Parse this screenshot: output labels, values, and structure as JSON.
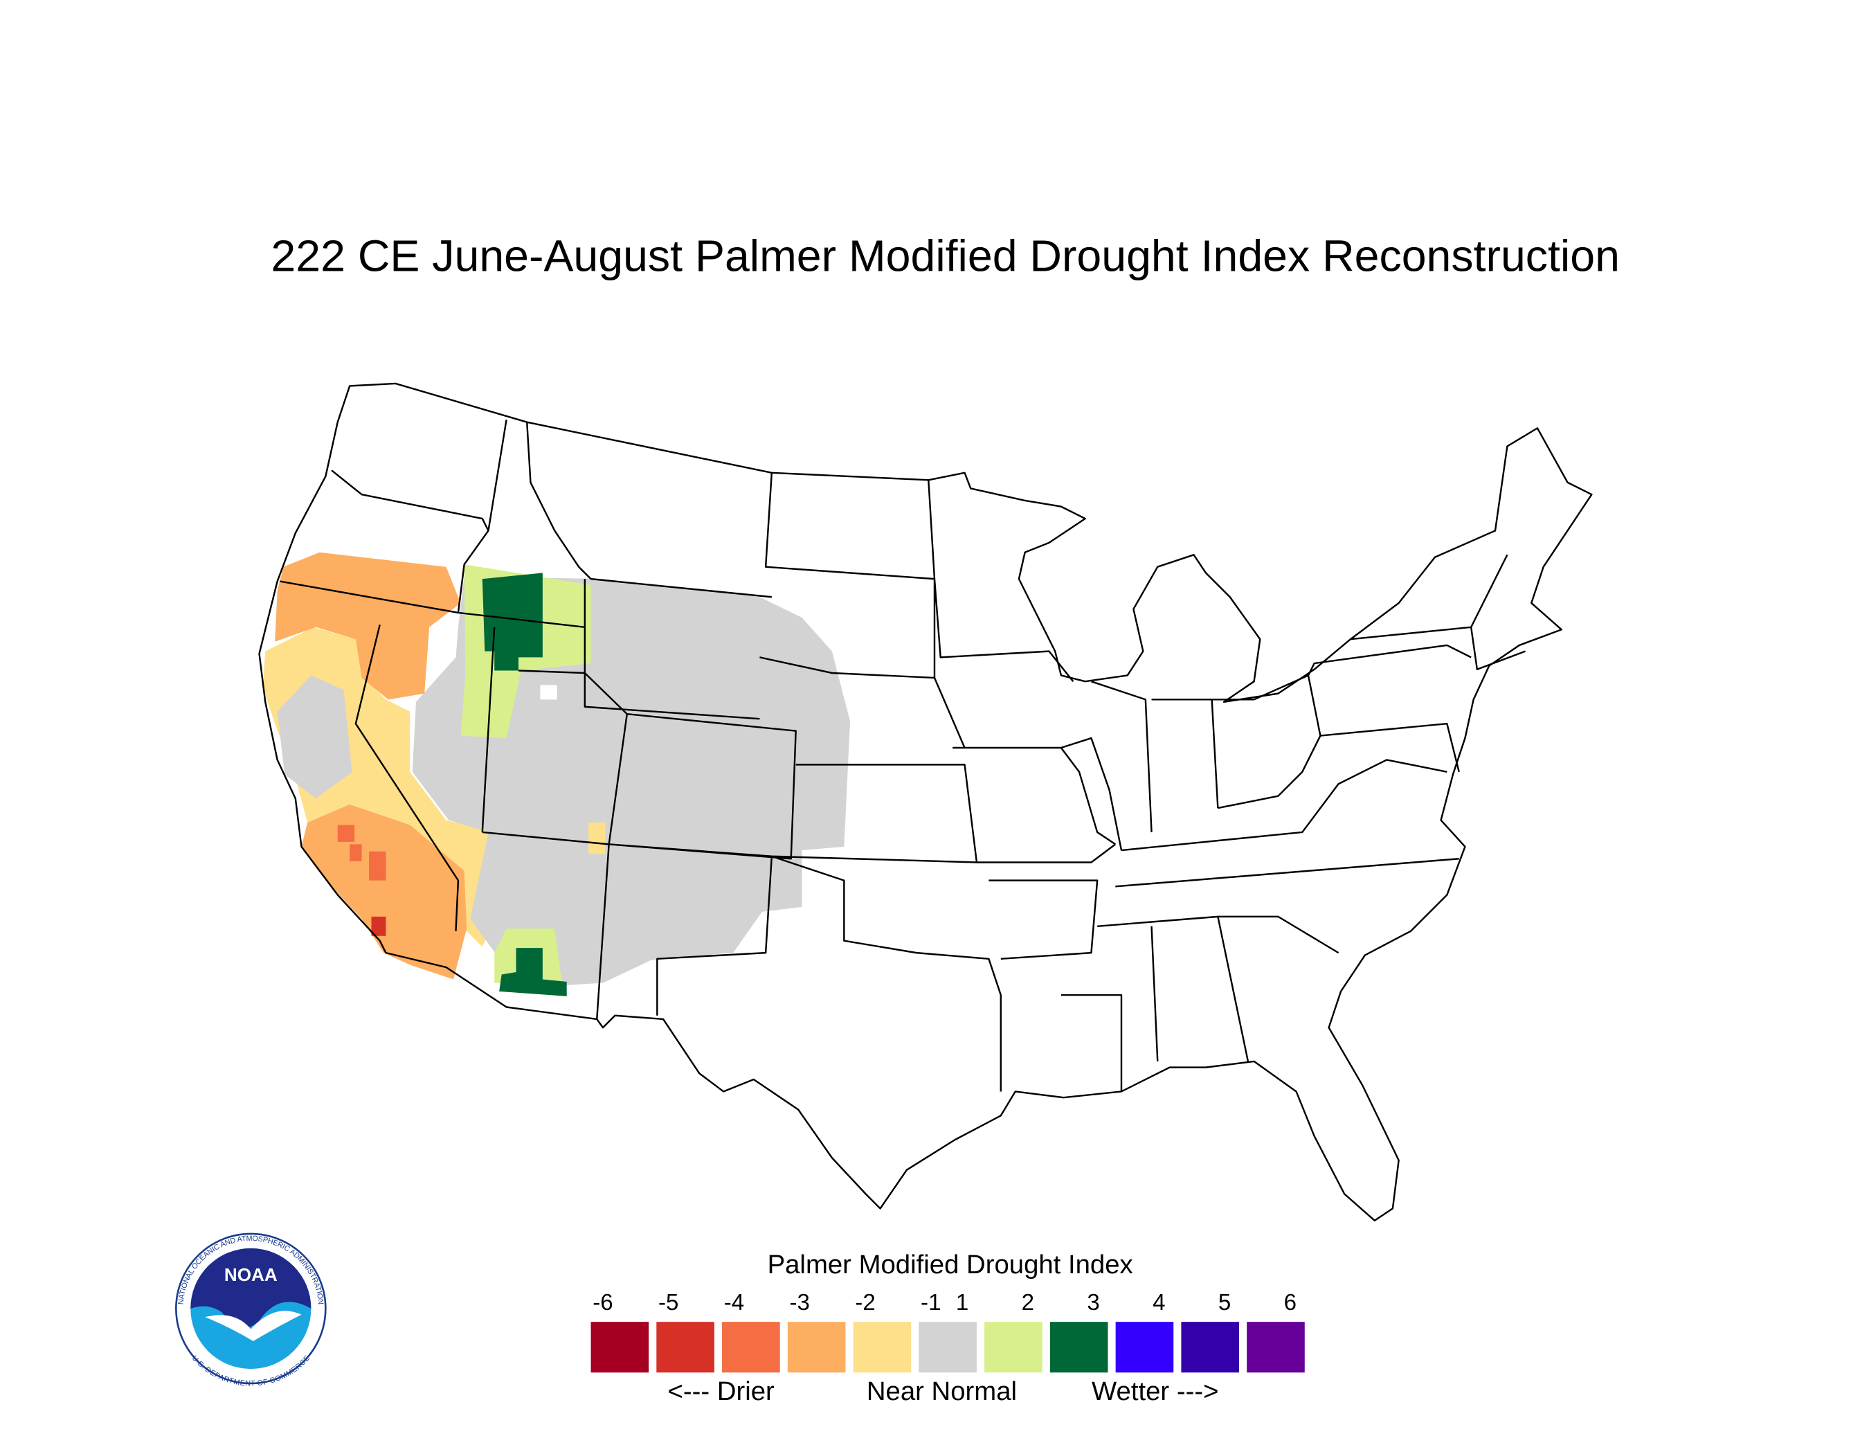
{
  "title": "222 CE  June-August  Palmer Modified Drought Index Reconstruction",
  "legend": {
    "title": "Palmer Modified Drought Index",
    "ticks": [
      -6,
      -5,
      -4,
      -3,
      -2,
      -1,
      1,
      2,
      3,
      4,
      5,
      6
    ],
    "colors": [
      "#a50021",
      "#d73027",
      "#f46d43",
      "#fdae61",
      "#fee08b",
      "#d3d3d3",
      "#d9ef8b",
      "#006837",
      "#3300ff",
      "#3300aa",
      "#660099"
    ],
    "annotations": [
      "<--- Drier",
      "Near Normal",
      "Wetter --->"
    ]
  },
  "logo": {
    "abbreviation": "NOAA",
    "agency": "NATIONAL OCEANIC AND ATMOSPHERIC ADMINISTRATION",
    "department": "U.S. DEPARTMENT OF COMMERCE"
  }
}
